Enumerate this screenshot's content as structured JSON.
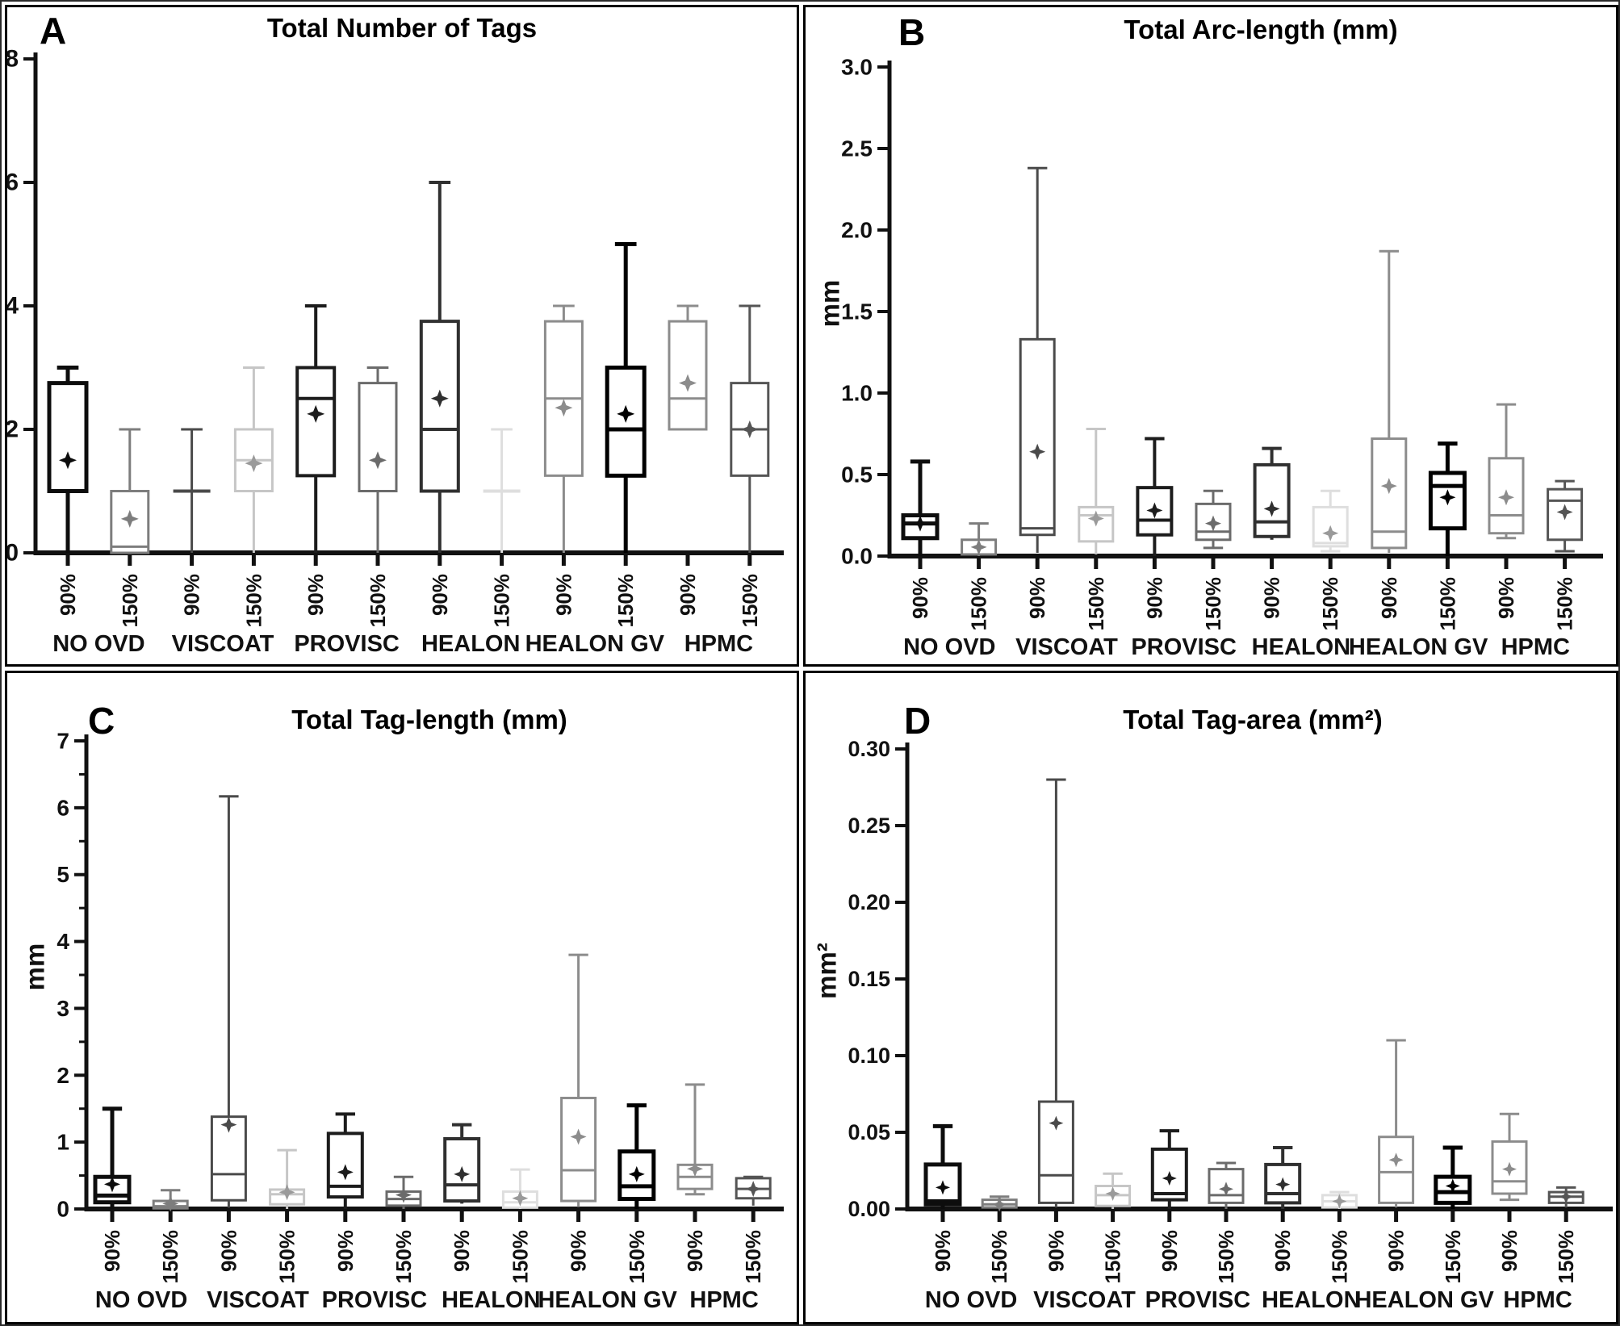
{
  "figure_title": "Box plot figure with four panels comparing OVD groups at 90% and 150%",
  "box_style": {
    "colors": [
      "#0d0d0d",
      "#7d7d7d",
      "#4a4a4a",
      "#c6c6c6",
      "#1c1c1c",
      "#6b6b6b",
      "#303030",
      "#dedede",
      "#8c8c8c",
      "#000000",
      "#8c8c8c",
      "#555555"
    ],
    "linewidths": [
      5,
      3,
      3,
      3,
      4,
      3,
      4,
      3,
      3,
      5,
      3,
      3
    ],
    "mean_marker": "four-pointed-star",
    "axis_color": "#111111"
  },
  "chart_data": [
    {
      "type": "box",
      "panel": "A",
      "letter": "A",
      "title": "Total Number of Tags",
      "ylabel": "",
      "ylim": [
        0,
        8
      ],
      "yticks": [
        0,
        2,
        4,
        6,
        8
      ],
      "ytick_labels": [
        "0",
        "2",
        "4",
        "6",
        "8"
      ],
      "minor_tick_step": null,
      "grid": false,
      "groups": [
        "NO OVD",
        "VISCOAT",
        "PROVISC",
        "HEALON",
        "HEALON GV",
        "HPMC"
      ],
      "conditions": [
        "90%",
        "150%"
      ],
      "boxes": [
        {
          "group": "NO OVD",
          "pct": "90%",
          "min": 0,
          "q1": 1.0,
          "median": 2.75,
          "q3": 2.75,
          "max": 3.0,
          "mean": 1.5
        },
        {
          "group": "NO OVD",
          "pct": "150%",
          "min": 0,
          "q1": 0,
          "median": 0.1,
          "q3": 1.0,
          "max": 2.0,
          "mean": 0.55
        },
        {
          "group": "VISCOAT",
          "pct": "90%",
          "min": 0,
          "q1": 1.0,
          "median": 1.0,
          "q3": 1.0,
          "max": 2.0,
          "mean": null
        },
        {
          "group": "VISCOAT",
          "pct": "150%",
          "min": 0,
          "q1": 1.0,
          "median": 1.5,
          "q3": 2.0,
          "max": 3.0,
          "mean": 1.45
        },
        {
          "group": "PROVISC",
          "pct": "90%",
          "min": 0,
          "q1": 1.25,
          "median": 2.5,
          "q3": 3.0,
          "max": 4.0,
          "mean": 2.25
        },
        {
          "group": "PROVISC",
          "pct": "150%",
          "min": 0,
          "q1": 1.0,
          "median": 1.0,
          "q3": 2.75,
          "max": 3.0,
          "mean": 1.5
        },
        {
          "group": "HEALON",
          "pct": "90%",
          "min": 0,
          "q1": 1.0,
          "median": 2.0,
          "q3": 3.75,
          "max": 6.0,
          "mean": 2.5
        },
        {
          "group": "HEALON",
          "pct": "150%",
          "min": 0,
          "q1": 1.0,
          "median": 1.0,
          "q3": 1.0,
          "max": 2.0,
          "mean": null
        },
        {
          "group": "HEALON GV",
          "pct": "90%",
          "min": 0,
          "q1": 1.25,
          "median": 2.5,
          "q3": 3.75,
          "max": 4.0,
          "mean": 2.35
        },
        {
          "group": "HEALON GV",
          "pct": "150%",
          "min": 0,
          "q1": 1.25,
          "median": 2.0,
          "q3": 3.0,
          "max": 5.0,
          "mean": 2.25
        },
        {
          "group": "HPMC",
          "pct": "90%",
          "min": 2.0,
          "q1": 2.0,
          "median": 2.5,
          "q3": 3.75,
          "max": 4.0,
          "mean": 2.75
        },
        {
          "group": "HPMC",
          "pct": "150%",
          "min": 0,
          "q1": 1.25,
          "median": 2.0,
          "q3": 2.75,
          "max": 4.0,
          "mean": 2.0
        }
      ]
    },
    {
      "type": "box",
      "panel": "B",
      "letter": "B",
      "title": "Total Arc-length (mm)",
      "ylabel": "mm",
      "ylim": [
        0,
        3.0
      ],
      "yticks": [
        0,
        0.5,
        1.0,
        1.5,
        2.0,
        2.5,
        3.0
      ],
      "ytick_labels": [
        "0.0",
        "0.5",
        "1.0",
        "1.5",
        "2.0",
        "2.5",
        "3.0"
      ],
      "minor_tick_step": null,
      "grid": false,
      "groups": [
        "NO OVD",
        "VISCOAT",
        "PROVISC",
        "HEALON",
        "HEALON GV",
        "HPMC"
      ],
      "conditions": [
        "90%",
        "150%"
      ],
      "boxes": [
        {
          "group": "NO OVD",
          "pct": "90%",
          "min": 0,
          "q1": 0.11,
          "median": 0.2,
          "q3": 0.25,
          "max": 0.58,
          "mean": 0.2
        },
        {
          "group": "NO OVD",
          "pct": "150%",
          "min": 0,
          "q1": 0.01,
          "median": 0.02,
          "q3": 0.1,
          "max": 0.2,
          "mean": 0.055
        },
        {
          "group": "VISCOAT",
          "pct": "90%",
          "min": 0.02,
          "q1": 0.13,
          "median": 0.17,
          "q3": 1.33,
          "max": 2.38,
          "mean": 0.64
        },
        {
          "group": "VISCOAT",
          "pct": "150%",
          "min": 0.01,
          "q1": 0.09,
          "median": 0.25,
          "q3": 0.3,
          "max": 0.78,
          "mean": 0.23
        },
        {
          "group": "PROVISC",
          "pct": "90%",
          "min": 0,
          "q1": 0.13,
          "median": 0.22,
          "q3": 0.42,
          "max": 0.72,
          "mean": 0.28
        },
        {
          "group": "PROVISC",
          "pct": "150%",
          "min": 0.05,
          "q1": 0.1,
          "median": 0.15,
          "q3": 0.32,
          "max": 0.4,
          "mean": 0.2
        },
        {
          "group": "HEALON",
          "pct": "90%",
          "min": 0.1,
          "q1": 0.12,
          "median": 0.21,
          "q3": 0.56,
          "max": 0.66,
          "mean": 0.29
        },
        {
          "group": "HEALON",
          "pct": "150%",
          "min": 0.03,
          "q1": 0.06,
          "median": 0.08,
          "q3": 0.3,
          "max": 0.4,
          "mean": 0.14
        },
        {
          "group": "HEALON GV",
          "pct": "90%",
          "min": 0.02,
          "q1": 0.05,
          "median": 0.15,
          "q3": 0.72,
          "max": 1.87,
          "mean": 0.43
        },
        {
          "group": "HEALON GV",
          "pct": "150%",
          "min": 0,
          "q1": 0.17,
          "median": 0.43,
          "q3": 0.51,
          "max": 0.69,
          "mean": 0.36
        },
        {
          "group": "HPMC",
          "pct": "90%",
          "min": 0.11,
          "q1": 0.14,
          "median": 0.25,
          "q3": 0.6,
          "max": 0.93,
          "mean": 0.36
        },
        {
          "group": "HPMC",
          "pct": "150%",
          "min": 0.03,
          "q1": 0.1,
          "median": 0.34,
          "q3": 0.41,
          "max": 0.46,
          "mean": 0.27
        }
      ]
    },
    {
      "type": "box",
      "panel": "C",
      "letter": "C",
      "title": "Total Tag-length (mm)",
      "ylabel": "mm",
      "ylim": [
        0,
        7
      ],
      "yticks": [
        0,
        1,
        2,
        3,
        4,
        5,
        6,
        7
      ],
      "ytick_labels": [
        "0",
        "1",
        "2",
        "3",
        "4",
        "5",
        "6",
        "7"
      ],
      "minor_tick_step": 0.5,
      "grid": false,
      "groups": [
        "NO OVD",
        "VISCOAT",
        "PROVISC",
        "HEALON",
        "HEALON GV",
        "HPMC"
      ],
      "conditions": [
        "90%",
        "150%"
      ],
      "boxes": [
        {
          "group": "NO OVD",
          "pct": "90%",
          "min": 0,
          "q1": 0.1,
          "median": 0.2,
          "q3": 0.48,
          "max": 1.5,
          "mean": 0.37
        },
        {
          "group": "NO OVD",
          "pct": "150%",
          "min": 0,
          "q1": 0.01,
          "median": 0.04,
          "q3": 0.12,
          "max": 0.28,
          "mean": 0.08
        },
        {
          "group": "VISCOAT",
          "pct": "90%",
          "min": 0.02,
          "q1": 0.13,
          "median": 0.52,
          "q3": 1.38,
          "max": 6.17,
          "mean": 1.26
        },
        {
          "group": "VISCOAT",
          "pct": "150%",
          "min": 0,
          "q1": 0.07,
          "median": 0.22,
          "q3": 0.29,
          "max": 0.88,
          "mean": 0.25
        },
        {
          "group": "PROVISC",
          "pct": "90%",
          "min": 0,
          "q1": 0.18,
          "median": 0.34,
          "q3": 1.13,
          "max": 1.42,
          "mean": 0.55
        },
        {
          "group": "PROVISC",
          "pct": "150%",
          "min": 0,
          "q1": 0.05,
          "median": 0.15,
          "q3": 0.26,
          "max": 0.48,
          "mean": 0.21
        },
        {
          "group": "HEALON",
          "pct": "90%",
          "min": 0.08,
          "q1": 0.12,
          "median": 0.36,
          "q3": 1.05,
          "max": 1.26,
          "mean": 0.52
        },
        {
          "group": "HEALON",
          "pct": "150%",
          "min": 0,
          "q1": 0.02,
          "median": 0.1,
          "q3": 0.26,
          "max": 0.59,
          "mean": 0.16
        },
        {
          "group": "HEALON GV",
          "pct": "90%",
          "min": 0.03,
          "q1": 0.12,
          "median": 0.58,
          "q3": 1.66,
          "max": 3.8,
          "mean": 1.08
        },
        {
          "group": "HEALON GV",
          "pct": "150%",
          "min": 0,
          "q1": 0.15,
          "median": 0.34,
          "q3": 0.86,
          "max": 1.55,
          "mean": 0.52
        },
        {
          "group": "HPMC",
          "pct": "90%",
          "min": 0.22,
          "q1": 0.3,
          "median": 0.48,
          "q3": 0.66,
          "max": 1.86,
          "mean": 0.6
        },
        {
          "group": "HPMC",
          "pct": "150%",
          "min": 0.05,
          "q1": 0.16,
          "median": 0.3,
          "q3": 0.46,
          "max": 0.48,
          "mean": 0.3
        }
      ]
    },
    {
      "type": "box",
      "panel": "D",
      "letter": "D",
      "title": "Total Tag-area (mm²)",
      "ylabel": "mm²",
      "ylim": [
        0,
        0.3
      ],
      "yticks": [
        0,
        0.05,
        0.1,
        0.15,
        0.2,
        0.25,
        0.3
      ],
      "ytick_labels": [
        "0.00",
        "0.05",
        "0.10",
        "0.15",
        "0.20",
        "0.25",
        "0.30"
      ],
      "minor_tick_step": null,
      "grid": false,
      "groups": [
        "NO OVD",
        "VISCOAT",
        "PROVISC",
        "HEALON",
        "HEALON GV",
        "HPMC"
      ],
      "conditions": [
        "90%",
        "150%"
      ],
      "boxes": [
        {
          "group": "NO OVD",
          "pct": "90%",
          "min": 0,
          "q1": 0.003,
          "median": 0.005,
          "q3": 0.029,
          "max": 0.054,
          "mean": 0.014
        },
        {
          "group": "NO OVD",
          "pct": "150%",
          "min": 0,
          "q1": 0.001,
          "median": 0.003,
          "q3": 0.006,
          "max": 0.008,
          "mean": 0.003
        },
        {
          "group": "VISCOAT",
          "pct": "90%",
          "min": 0.001,
          "q1": 0.004,
          "median": 0.022,
          "q3": 0.07,
          "max": 0.28,
          "mean": 0.056
        },
        {
          "group": "VISCOAT",
          "pct": "150%",
          "min": 0,
          "q1": 0.002,
          "median": 0.009,
          "q3": 0.015,
          "max": 0.023,
          "mean": 0.01
        },
        {
          "group": "PROVISC",
          "pct": "90%",
          "min": 0,
          "q1": 0.006,
          "median": 0.01,
          "q3": 0.039,
          "max": 0.051,
          "mean": 0.02
        },
        {
          "group": "PROVISC",
          "pct": "150%",
          "min": 0,
          "q1": 0.004,
          "median": 0.009,
          "q3": 0.026,
          "max": 0.03,
          "mean": 0.013
        },
        {
          "group": "HEALON",
          "pct": "90%",
          "min": 0,
          "q1": 0.004,
          "median": 0.01,
          "q3": 0.029,
          "max": 0.04,
          "mean": 0.016
        },
        {
          "group": "HEALON",
          "pct": "150%",
          "min": 0,
          "q1": 0.001,
          "median": 0.005,
          "q3": 0.009,
          "max": 0.011,
          "mean": 0.005
        },
        {
          "group": "HEALON GV",
          "pct": "90%",
          "min": 0.001,
          "q1": 0.004,
          "median": 0.024,
          "q3": 0.047,
          "max": 0.11,
          "mean": 0.032
        },
        {
          "group": "HEALON GV",
          "pct": "150%",
          "min": 0,
          "q1": 0.004,
          "median": 0.011,
          "q3": 0.021,
          "max": 0.04,
          "mean": 0.015
        },
        {
          "group": "HPMC",
          "pct": "90%",
          "min": 0.006,
          "q1": 0.01,
          "median": 0.018,
          "q3": 0.044,
          "max": 0.062,
          "mean": 0.026
        },
        {
          "group": "HPMC",
          "pct": "150%",
          "min": 0.001,
          "q1": 0.004,
          "median": 0.008,
          "q3": 0.011,
          "max": 0.014,
          "mean": 0.008
        }
      ]
    }
  ]
}
